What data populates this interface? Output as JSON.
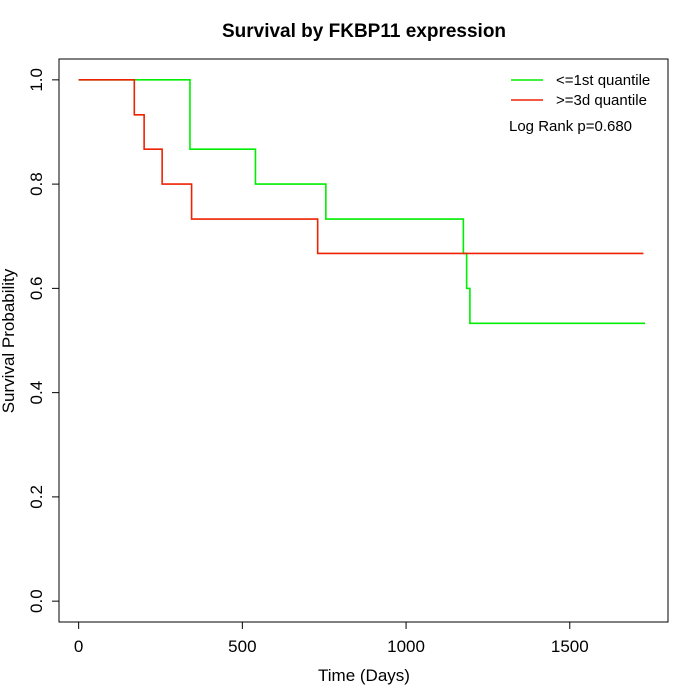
{
  "chart_data": {
    "type": "line",
    "title": "Survival by FKBP11 expression",
    "xlabel": "Time (Days)",
    "ylabel": "Survival Probability",
    "xlim": [
      -60,
      1800
    ],
    "ylim": [
      -0.04,
      1.04
    ],
    "xticks": [
      0,
      500,
      1000,
      1500
    ],
    "yticks": [
      0.0,
      0.2,
      0.4,
      0.6,
      0.8,
      1.0
    ],
    "xtick_labels": [
      "0",
      "500",
      "1000",
      "1500"
    ],
    "ytick_labels": [
      "0.0",
      "0.2",
      "0.4",
      "0.6",
      "0.8",
      "1.0"
    ],
    "grid": false,
    "legend_position": "top-right",
    "annotation": "Log Rank p=0.680",
    "series": [
      {
        "name": "<=1st quantile",
        "color": "#00ee00",
        "step_x": [
          0,
          340,
          340,
          540,
          540,
          755,
          755,
          1175,
          1175,
          1185,
          1185,
          1195,
          1195,
          1730
        ],
        "step_y": [
          1.0,
          1.0,
          0.867,
          0.867,
          0.8,
          0.8,
          0.733,
          0.733,
          0.667,
          0.667,
          0.6,
          0.6,
          0.533,
          0.533
        ]
      },
      {
        "name": ">=3d quantile",
        "color": "#ee2200",
        "step_x": [
          0,
          170,
          170,
          200,
          200,
          255,
          255,
          345,
          345,
          730,
          730,
          1725
        ],
        "step_y": [
          1.0,
          1.0,
          0.933,
          0.933,
          0.867,
          0.867,
          0.8,
          0.8,
          0.733,
          0.733,
          0.667,
          0.667
        ]
      }
    ]
  }
}
